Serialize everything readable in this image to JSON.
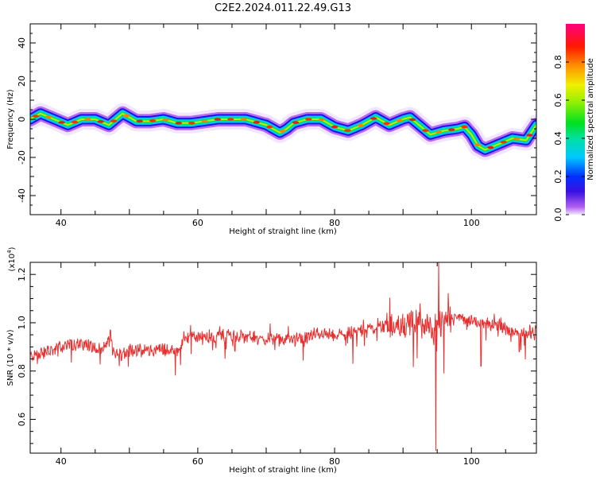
{
  "title": "C2E2.2024.011.22.49.G13",
  "chart_data": [
    {
      "type": "heatmap",
      "xlabel": "Height of straight line (km)",
      "ylabel": "Frequency (Hz)",
      "xlim": [
        35.5,
        109.5
      ],
      "ylim": [
        -50,
        50
      ],
      "x_ticks": [
        "40",
        "60",
        "80",
        "100"
      ],
      "y_ticks": [
        "40",
        "20",
        "0",
        "-20",
        "-40"
      ],
      "ridge_x": [
        35.5,
        37,
        39,
        41,
        43,
        45,
        47,
        49,
        51,
        53,
        55,
        57,
        59,
        61,
        63,
        65,
        67,
        69,
        70,
        71,
        72,
        73,
        74,
        76,
        78,
        80,
        82,
        84,
        86,
        88,
        90,
        91,
        92,
        93,
        94,
        96,
        98,
        99,
        100,
        101,
        102,
        104,
        106,
        108,
        109.5
      ],
      "ridge_y": [
        0,
        3,
        0,
        -3,
        0,
        0,
        -3,
        3,
        -1,
        -1,
        0,
        -2,
        -2,
        -1,
        0,
        0,
        0,
        -2,
        -3,
        -5,
        -7,
        -5,
        -2,
        0,
        0,
        -4,
        -6,
        -3,
        1,
        -3,
        0,
        1,
        -2,
        -5,
        -8,
        -6,
        -5,
        -4,
        -8,
        -14,
        -16,
        -13,
        -10,
        -11,
        -3
      ],
      "colorbar": {
        "label": "Normalized spectral amplitude",
        "ticks": [
          "0.0",
          "0.2",
          "0.4",
          "0.6",
          "0.8"
        ],
        "range": [
          0,
          1
        ]
      }
    },
    {
      "type": "line",
      "xlabel": "Height of straight line (km)",
      "ylabel": "SNR (10 * v/v)",
      "y_multiplier": "(x10",
      "y_multiplier_exp": "4",
      "y_multiplier_close": ")",
      "xlim": [
        35.5,
        109.5
      ],
      "ylim": [
        0.46,
        1.25
      ],
      "x_ticks": [
        "40",
        "60",
        "80",
        "100"
      ],
      "y_ticks": [
        "1.2",
        "1.0",
        "0.8",
        "0.6"
      ],
      "color": "#e83030",
      "trend_x": [
        35.5,
        38,
        41,
        44,
        46,
        47,
        48,
        50,
        55,
        57,
        58,
        60,
        65,
        70,
        75,
        78,
        80,
        82,
        85,
        88,
        91,
        93,
        94,
        95,
        96,
        98,
        100,
        104,
        107,
        109.5
      ],
      "trend_y": [
        0.86,
        0.88,
        0.91,
        0.91,
        0.88,
        0.93,
        0.87,
        0.88,
        0.89,
        0.88,
        0.94,
        0.94,
        0.95,
        0.93,
        0.93,
        0.96,
        0.94,
        0.96,
        0.98,
        0.99,
        0.99,
        1.0,
        0.97,
        1.0,
        1.0,
        1.02,
        1.01,
        0.99,
        0.95,
        0.97
      ],
      "features": [
        {
          "x": 47.2,
          "y": 0.97
        },
        {
          "x": 82.7,
          "y": 0.83
        },
        {
          "x": 92.5,
          "y": 1.08
        },
        {
          "x": 94.8,
          "y": 0.47
        },
        {
          "x": 95.2,
          "y": 1.25
        },
        {
          "x": 96.0,
          "y": 0.79
        },
        {
          "x": 101.4,
          "y": 0.82
        },
        {
          "x": 107.0,
          "y": 0.88
        }
      ]
    }
  ]
}
